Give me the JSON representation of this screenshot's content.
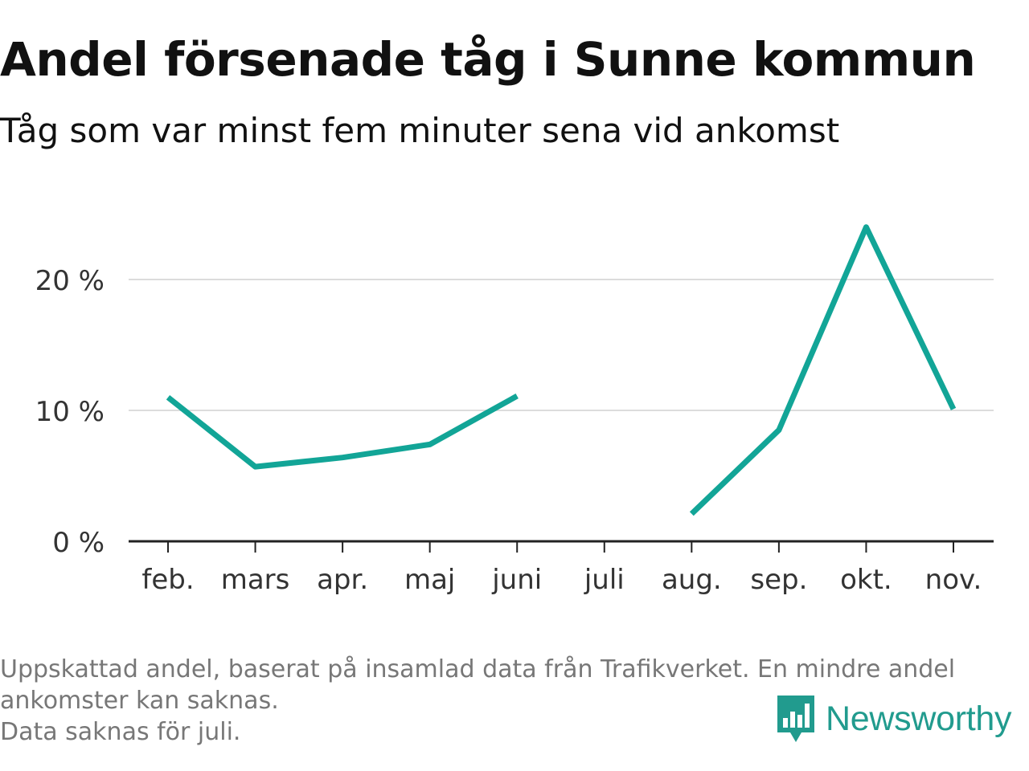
{
  "title": "Andel försenade tåg i Sunne kommun",
  "subtitle": "Tåg som var minst fem minuter sena vid ankomst",
  "footnote": {
    "line1": "Uppskattad andel, baserat på insamlad data från Trafikverket. En mindre andel",
    "line2": "ankomster kan saknas.",
    "line3": "Data saknas för juli."
  },
  "brand": {
    "name": "Newsworthy",
    "icon": "newsworthy-logo-icon",
    "color": "#219b8e"
  },
  "chart_data": {
    "type": "line",
    "categories": [
      "feb.",
      "mars",
      "apr.",
      "maj",
      "juni",
      "juli",
      "aug.",
      "sep.",
      "okt.",
      "nov."
    ],
    "series": [
      {
        "values": [
          11.0,
          5.7,
          6.4,
          7.4,
          11.1,
          null,
          2.1,
          8.5,
          24.0,
          10.1
        ]
      }
    ],
    "ylim": [
      0,
      25
    ],
    "yticks": [
      0,
      10,
      20
    ],
    "ytick_labels": [
      "0 %",
      "10 %",
      "20 %"
    ],
    "line_color": "#12a597",
    "grid": true,
    "xlabel": "",
    "ylabel": ""
  }
}
